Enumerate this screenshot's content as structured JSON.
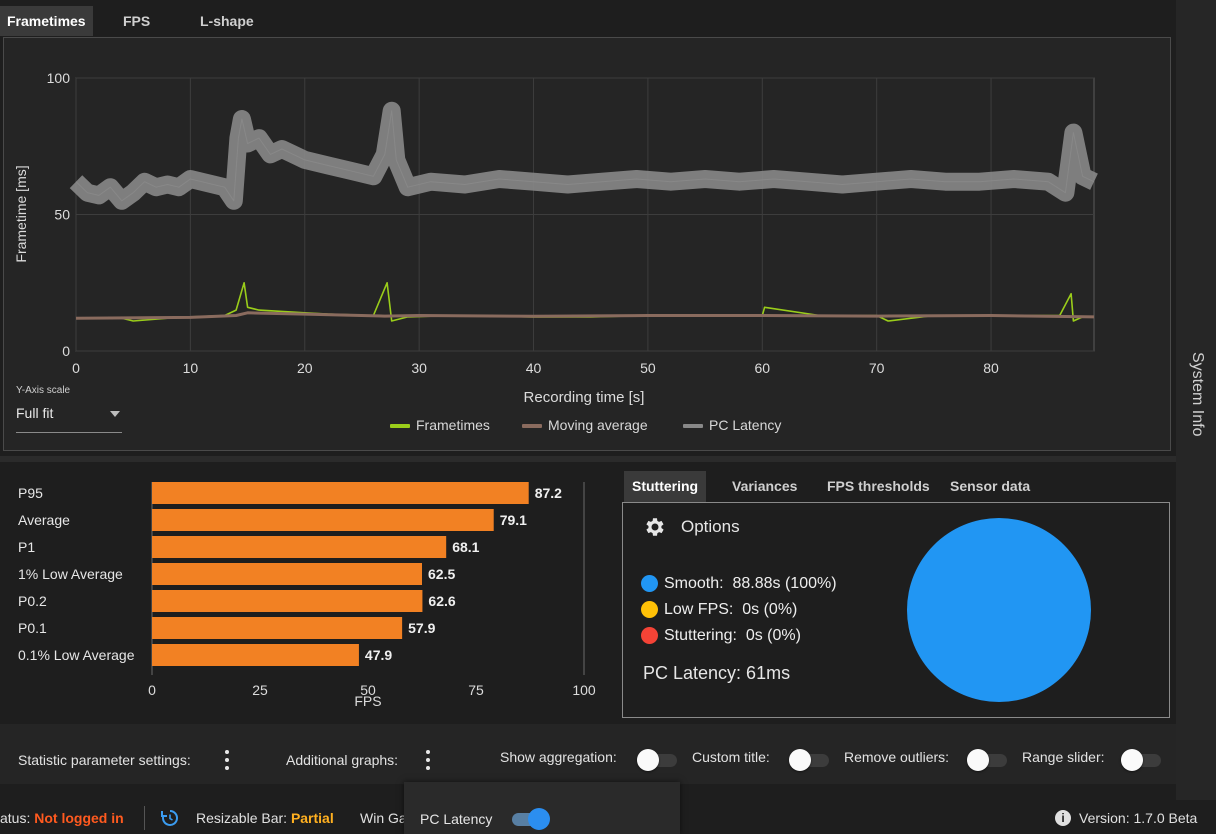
{
  "tabs": [
    {
      "label": "Frametimes",
      "active": true
    },
    {
      "label": "FPS",
      "active": false
    },
    {
      "label": "L-shape",
      "active": false
    }
  ],
  "frametime_chart": {
    "chart_data": {
      "type": "line",
      "xlabel": "Recording time [s]",
      "ylabel": "Frametime [ms]",
      "xlim": [
        0,
        89
      ],
      "ylim": [
        0,
        100
      ],
      "x_ticks": [
        0,
        10,
        20,
        30,
        40,
        50,
        60,
        70,
        80
      ],
      "y_ticks": [
        0,
        50,
        100
      ],
      "grid": true,
      "legend_position": "bottom-center",
      "series": [
        {
          "name": "Frametimes",
          "color": "#9acd1a",
          "x": [
            0,
            4,
            5,
            8,
            10,
            13,
            14,
            14.7,
            15,
            16,
            20,
            22,
            26,
            27.2,
            27.6,
            29,
            33,
            40,
            45,
            50,
            55,
            60,
            60.2,
            65,
            70,
            71,
            75,
            80,
            86,
            87,
            87.2,
            88,
            89
          ],
          "y": [
            12,
            12,
            11,
            12,
            12.5,
            13,
            15,
            25,
            16,
            15,
            14,
            13.5,
            13,
            25,
            11,
            12.5,
            13,
            12.5,
            12.5,
            13,
            13,
            13,
            16,
            13,
            13,
            11,
            13,
            13,
            13,
            21,
            11,
            12.5,
            12.5
          ]
        },
        {
          "name": "Moving average",
          "color": "#8a6b5e",
          "x": [
            0,
            10,
            14,
            15,
            20,
            27,
            30,
            40,
            50,
            60,
            70,
            80,
            89
          ],
          "y": [
            12,
            12.3,
            13,
            14,
            13.5,
            12.8,
            13,
            12.7,
            13,
            13,
            12.8,
            13,
            12.5
          ]
        },
        {
          "name": "PC Latency",
          "color": "#888888",
          "x": [
            0,
            1,
            2,
            3,
            4,
            5,
            6,
            7,
            8,
            9,
            10,
            11,
            12,
            13,
            13.8,
            14.2,
            14.5,
            15,
            16,
            17,
            18,
            19,
            20,
            22,
            24,
            26,
            27,
            27.6,
            28,
            29,
            31,
            34,
            37,
            40,
            43,
            46,
            49,
            52,
            55,
            58,
            61,
            64,
            67,
            70,
            73,
            76,
            79,
            82,
            85,
            86.5,
            87.2,
            88,
            89
          ],
          "y": [
            62,
            58,
            57,
            60,
            55,
            58,
            62,
            60,
            61,
            60,
            63,
            62,
            61,
            60,
            55,
            78,
            85,
            76,
            78,
            72,
            74,
            72,
            70,
            68,
            66,
            64,
            72,
            88,
            70,
            60,
            62,
            61,
            63,
            62,
            61,
            62,
            63,
            62,
            63,
            62,
            63,
            62,
            61,
            62,
            63,
            62,
            62,
            63,
            62,
            58,
            80,
            64,
            62
          ]
        }
      ]
    },
    "y_axis_scale_label": "Y-Axis scale",
    "y_axis_scale_value": "Full fit"
  },
  "fps_bars": {
    "chart_data": {
      "type": "bar",
      "orientation": "horizontal",
      "categories": [
        "P95",
        "Average",
        "P1",
        "1% Low Average",
        "P0.2",
        "P0.1",
        "0.1% Low Average"
      ],
      "values": [
        87.2,
        79.1,
        68.1,
        62.5,
        62.6,
        57.9,
        47.9
      ],
      "value_labels": [
        "87.2",
        "79.1",
        "68.1",
        "62.5",
        "62.6",
        "57.9",
        "47.9"
      ],
      "xlabel": "FPS",
      "xlim": [
        0,
        100
      ],
      "x_ticks": [
        0,
        25,
        50,
        75,
        100
      ],
      "color": "#f28123"
    }
  },
  "stats_tabs": [
    {
      "label": "Stuttering",
      "active": true
    },
    {
      "label": "Variances",
      "active": false
    },
    {
      "label": "FPS thresholds",
      "active": false
    },
    {
      "label": "Sensor data",
      "active": false
    }
  ],
  "stuttering": {
    "options_label": "Options",
    "rows": [
      {
        "label": "Smooth:",
        "value": "88.88s (100%)",
        "color": "#2196f3"
      },
      {
        "label": "Low FPS:",
        "value": "0s (0%)",
        "color": "#ffc107"
      },
      {
        "label": "Stuttering:",
        "value": "0s (0%)",
        "color": "#f44336"
      }
    ],
    "latency_text": "PC Latency: 61ms",
    "chart_data": {
      "type": "pie",
      "categories": [
        "Smooth",
        "Low FPS",
        "Stuttering"
      ],
      "values": [
        100,
        0,
        0
      ],
      "colors": [
        "#2196f3",
        "#ffc107",
        "#f44336"
      ]
    }
  },
  "settings": {
    "statistic_label": "Statistic parameter settings:",
    "additional_graphs_label": "Additional graphs:",
    "show_aggregation_label": "Show aggregation:",
    "custom_title_label": "Custom title:",
    "remove_outliers_label": "Remove outliers:",
    "range_slider_label": "Range slider:"
  },
  "popover": {
    "label": "PC Latency"
  },
  "status_bar": {
    "status_prefix": "atus:",
    "status_value": "Not logged in",
    "resizable_bar_label": "Resizable Bar:",
    "resizable_bar_value": "Partial",
    "win_game_label": "Win Ga",
    "version_label": "Version:",
    "version_value": "1.7.0 Beta",
    "colors": {
      "status_value": "#ff5a1f",
      "resizable_value": "#ffb020"
    }
  },
  "side_panel": {
    "label": "System Info"
  }
}
